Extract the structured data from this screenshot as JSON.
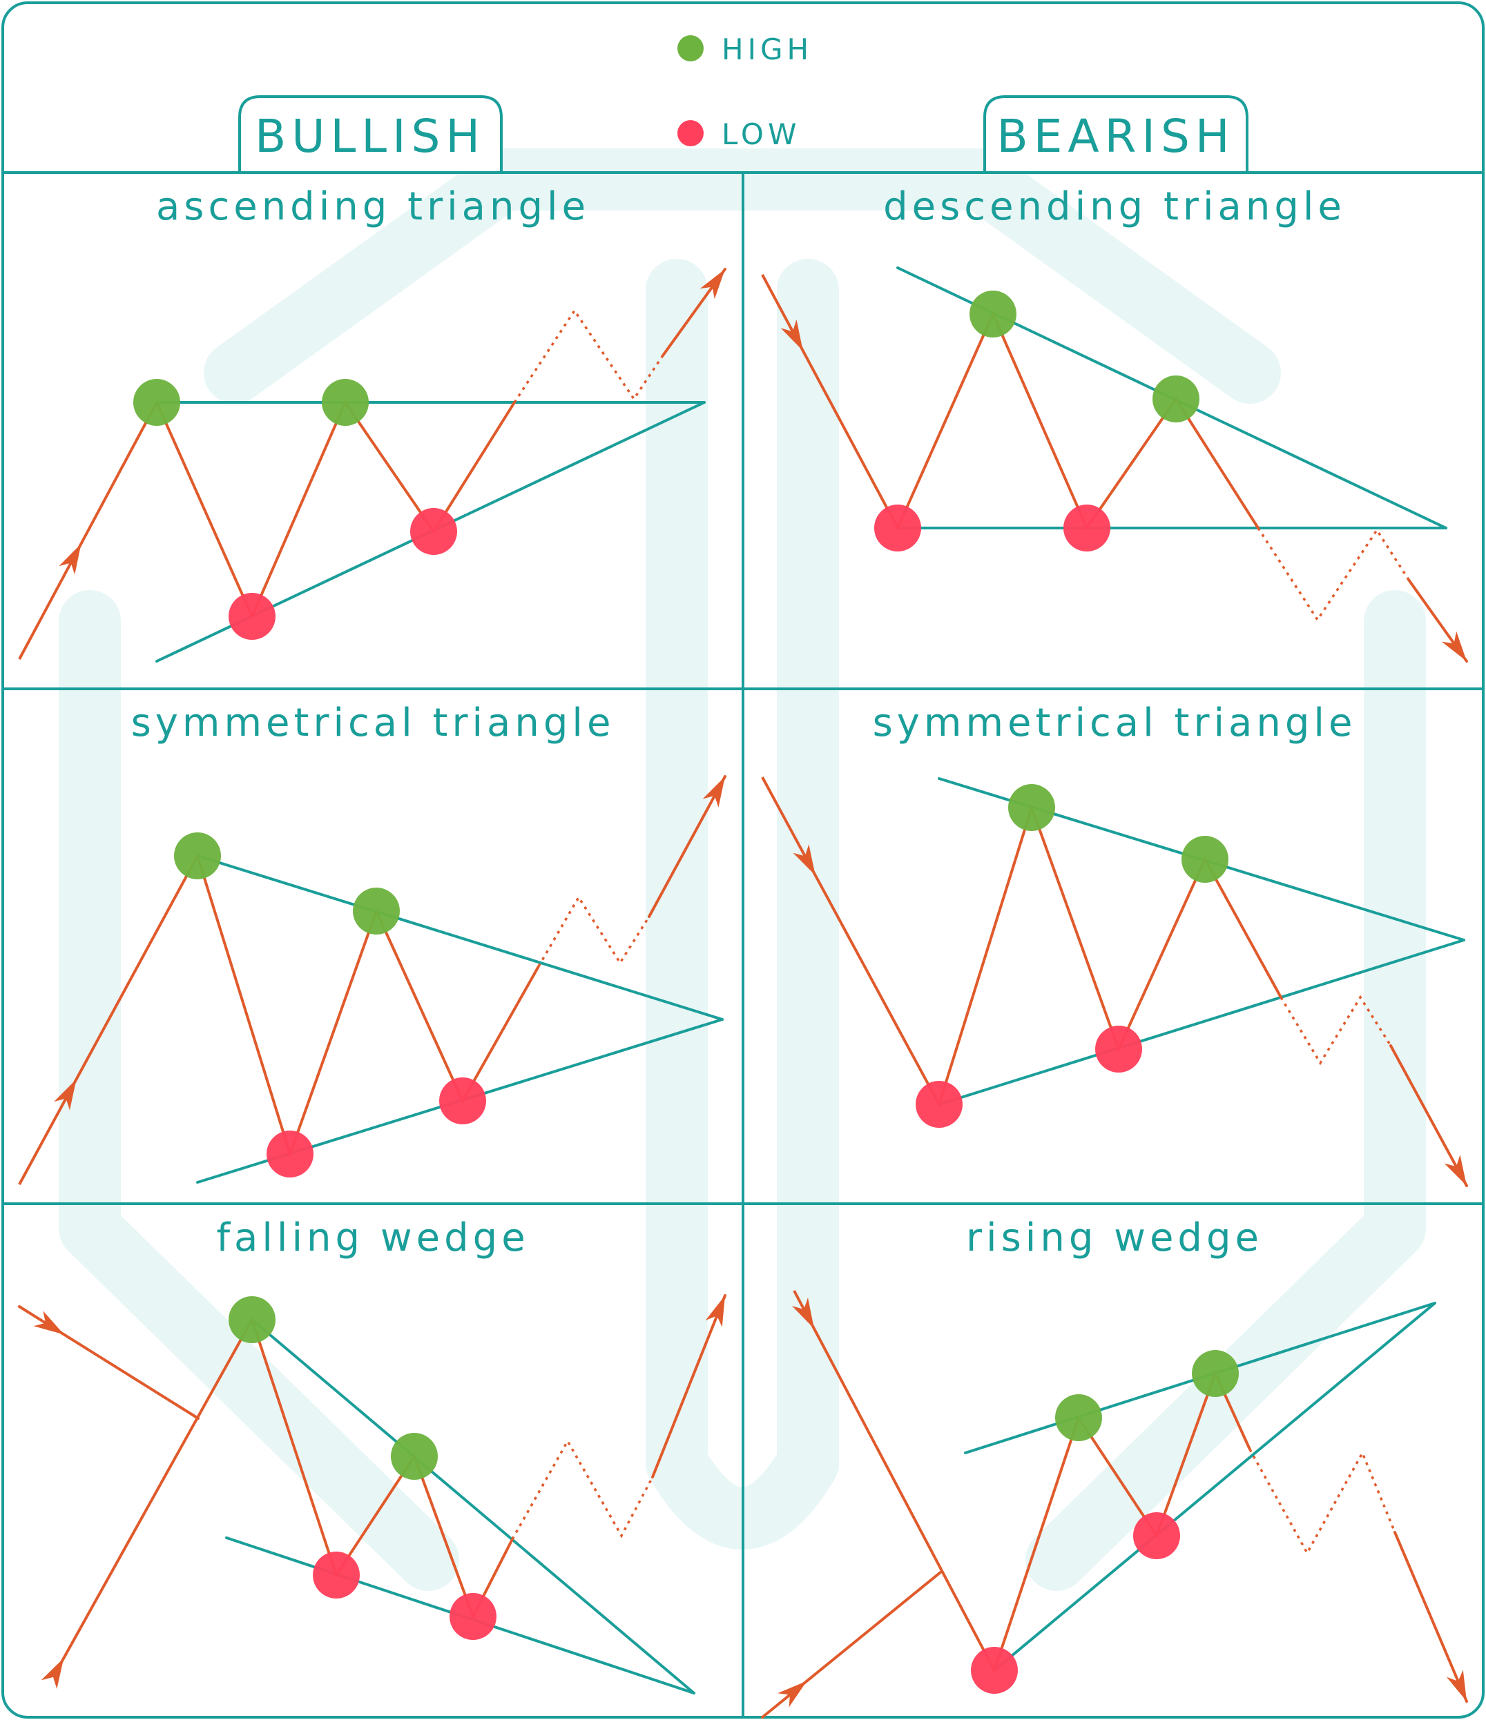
{
  "legend": {
    "high": {
      "label": "HIGH",
      "color": "#6db33f"
    },
    "low": {
      "label": "LOW",
      "color": "#ff3f5c"
    }
  },
  "tabs": {
    "bullish": "BULLISH",
    "bearish": "BEARISH"
  },
  "panels": [
    {
      "id": "ascending",
      "title": "ascending triangle"
    },
    {
      "id": "descending",
      "title": "descending triangle"
    },
    {
      "id": "sym-bull",
      "title": "symmetrical triangle"
    },
    {
      "id": "sym-bear",
      "title": "symmetrical triangle"
    },
    {
      "id": "falling-wedge",
      "title": "falling wedge"
    },
    {
      "id": "rising-wedge",
      "title": "rising wedge"
    }
  ],
  "colors": {
    "teal": "#1a9e9a",
    "price": "#e05a2b",
    "watermark": "#e8f6f6"
  }
}
